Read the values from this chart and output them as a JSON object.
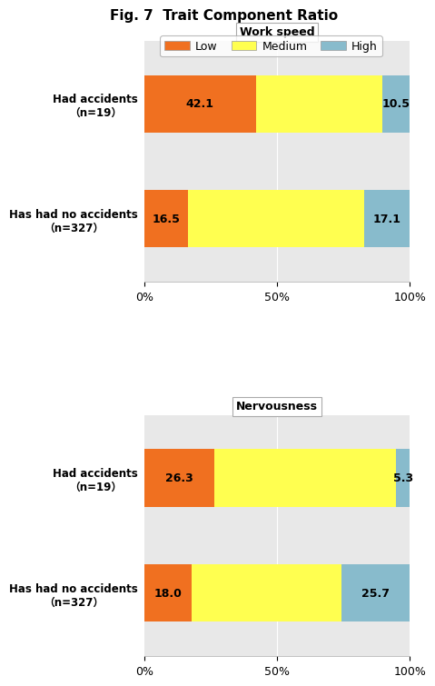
{
  "title": "Fig. 7  Trait Component Ratio",
  "title_fontsize": 11,
  "legend_items": [
    "Low",
    "Medium",
    "High"
  ],
  "colors": {
    "Low": "#F07020",
    "Medium": "#FFFF50",
    "High": "#88BBCC"
  },
  "charts": [
    {
      "subtitle": "Work speed",
      "categories": [
        "Had accidents\n（n=19）",
        "Has had no accidents\n（n=327）"
      ],
      "low": [
        42.1,
        16.5
      ],
      "medium": [
        47.4,
        66.4
      ],
      "high": [
        10.5,
        17.1
      ],
      "low_labels": [
        "42.1",
        "16.5"
      ],
      "high_labels": [
        "10.5",
        "17.1"
      ]
    },
    {
      "subtitle": "Nervousness",
      "categories": [
        "Had accidents\n（n=19）",
        "Has had no accidents\n（n=327）"
      ],
      "low": [
        26.3,
        18.0
      ],
      "medium": [
        68.4,
        56.3
      ],
      "high": [
        5.3,
        25.7
      ],
      "low_labels": [
        "26.3",
        "18.0"
      ],
      "high_labels": [
        "5.3",
        "25.7"
      ]
    }
  ],
  "bar_height": 0.5,
  "xlim": [
    0,
    100
  ],
  "xticks": [
    0,
    50,
    100
  ],
  "xticklabels": [
    "0%",
    "50%",
    "100%"
  ],
  "background_color": "#E8E8E8",
  "bar_label_fontsize": 9,
  "axis_label_fontsize": 9,
  "subtitle_fontsize": 9,
  "ylabel_fontsize": 8.5
}
